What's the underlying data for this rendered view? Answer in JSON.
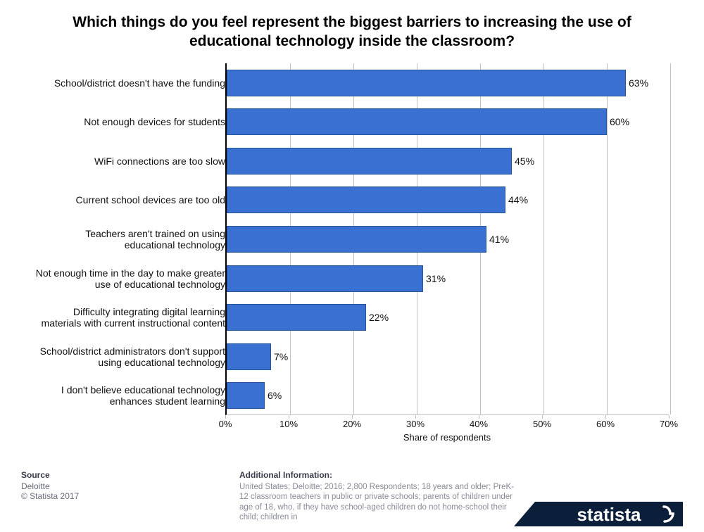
{
  "title": "Which things do you feel represent the biggest barriers to increasing the use of educational technology inside the classroom?",
  "title_fontsize": 21,
  "chart": {
    "type": "horizontal-bar",
    "bar_color": "#3a70d1",
    "bar_border_color": "#285598",
    "background_color": "#ffffff",
    "grid_color": "#c0c0c0",
    "axis_color": "#000000",
    "label_fontsize": 14,
    "value_suffix": "%",
    "xlim": [
      0,
      70
    ],
    "xtick_step": 10,
    "x_axis_title": "Share of respondents",
    "categories": [
      "School/district doesn't have the funding",
      "Not enough devices for students",
      "WiFi connections are too slow",
      "Current school devices are too old",
      "Teachers aren't trained on using educational technology",
      "Not enough time in the day to make greater use of educational technology",
      "Difficulty integrating digital learning materials with current instructional content",
      "School/district administrators don't support using educational technology",
      "I don't believe educational technology enhances student learning"
    ],
    "values": [
      63,
      60,
      45,
      44,
      41,
      31,
      22,
      7,
      6
    ]
  },
  "footer": {
    "source_head": "Source",
    "source_name": "Deloitte",
    "copyright": "© Statista 2017",
    "info_head": "Additional Information:",
    "info_text": "United States; Deloitte; 2016; 2,800 Respondents; 18 years and older; PreK-12 classroom teachers in public or private schools; parents of children under age of 18, who, if they have school-aged children do not home-school their child; children in",
    "logo_text": "statista",
    "logo_bg": "#0b1f3a",
    "logo_color": "#ffffff"
  }
}
